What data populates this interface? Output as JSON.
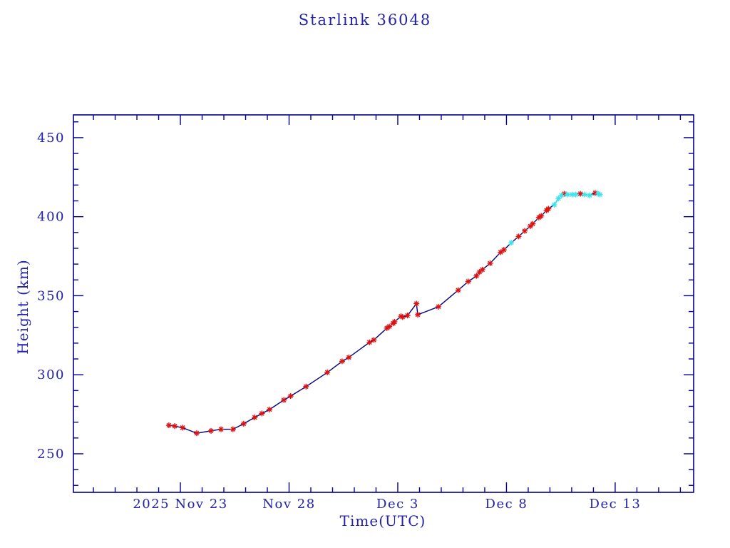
{
  "title": "Starlink 36048",
  "colors": {
    "background": "#ffffff",
    "text_blue": "#2121aa",
    "frame_navy": "#000090",
    "line_navy": "#000080",
    "marker_red": "#dd1111",
    "marker_cyan": "#3fe3ee"
  },
  "chart_data": {
    "type": "line",
    "title": "Starlink 36048",
    "xlabel": "Time(UTC)",
    "ylabel": "Height (km)",
    "grid": false,
    "legend": "none",
    "x_unit": "days since 2025 Nov 23 00:00",
    "x_range_days": [
      -4.92,
      23.61
    ],
    "y_range": [
      225.6,
      464.4
    ],
    "x_ticks_major": [
      {
        "t": 0,
        "label": "2025 Nov 23"
      },
      {
        "t": 5,
        "label": "Nov 28"
      },
      {
        "t": 10,
        "label": "Dec  3"
      },
      {
        "t": 15,
        "label": "Dec  8"
      },
      {
        "t": 20,
        "label": "Dec 13"
      }
    ],
    "x_minor_step_days": 1,
    "y_ticks_major": [
      250,
      300,
      350,
      400,
      450
    ],
    "y_minor_step": 10,
    "series": [
      {
        "name": "observed-height",
        "marker": "asterisk",
        "marker_color": "#dd1111",
        "line_color": "#000080",
        "points": [
          [
            -0.53,
            268
          ],
          [
            -0.26,
            267.5
          ],
          [
            0.1,
            266.5
          ],
          [
            0.75,
            263
          ],
          [
            1.41,
            264.5
          ],
          [
            1.87,
            265.5
          ],
          [
            2.42,
            265.5
          ],
          [
            2.91,
            269
          ],
          [
            3.42,
            273
          ],
          [
            3.75,
            275.5
          ],
          [
            4.1,
            278
          ],
          [
            4.76,
            284
          ],
          [
            5.07,
            286.5
          ],
          [
            5.78,
            292.5
          ],
          [
            6.76,
            301.5
          ],
          [
            7.44,
            308.5
          ],
          [
            7.75,
            311
          ],
          [
            8.7,
            320.5
          ],
          [
            8.9,
            322
          ],
          [
            9.5,
            329.5
          ],
          [
            9.61,
            330.5
          ],
          [
            9.79,
            332.5
          ],
          [
            9.85,
            333.5
          ],
          [
            10.15,
            337
          ],
          [
            10.22,
            336.5
          ],
          [
            10.45,
            337.5
          ],
          [
            10.86,
            345
          ],
          [
            10.92,
            338
          ],
          [
            11.87,
            343
          ],
          [
            12.78,
            353.5
          ],
          [
            13.24,
            359
          ],
          [
            13.62,
            362.5
          ],
          [
            13.76,
            365
          ],
          [
            13.89,
            366.5
          ],
          [
            14.25,
            370.5
          ],
          [
            14.73,
            377.5
          ],
          [
            14.88,
            379
          ],
          [
            15.56,
            387.5
          ],
          [
            15.84,
            391
          ],
          [
            16.1,
            394
          ],
          [
            16.21,
            395.5
          ],
          [
            16.49,
            399.5
          ],
          [
            16.6,
            400.5
          ],
          [
            16.84,
            404
          ],
          [
            16.93,
            405
          ],
          [
            17.66,
            414.5
          ],
          [
            18.4,
            414.5
          ],
          [
            19.08,
            415
          ]
        ]
      },
      {
        "name": "predicted-height",
        "marker": "asterisk",
        "marker_color": "#3fe3ee",
        "line_color": "#3fe3ee",
        "points": [
          [
            15.22,
            383.5
          ],
          [
            17.2,
            407.5
          ],
          [
            17.39,
            411.5
          ],
          [
            17.53,
            413.5
          ],
          [
            17.8,
            414
          ],
          [
            18.02,
            414
          ],
          [
            18.19,
            414
          ],
          [
            18.59,
            414
          ],
          [
            18.83,
            413.5
          ],
          [
            19.22,
            414.5
          ],
          [
            19.3,
            414
          ]
        ]
      }
    ]
  }
}
